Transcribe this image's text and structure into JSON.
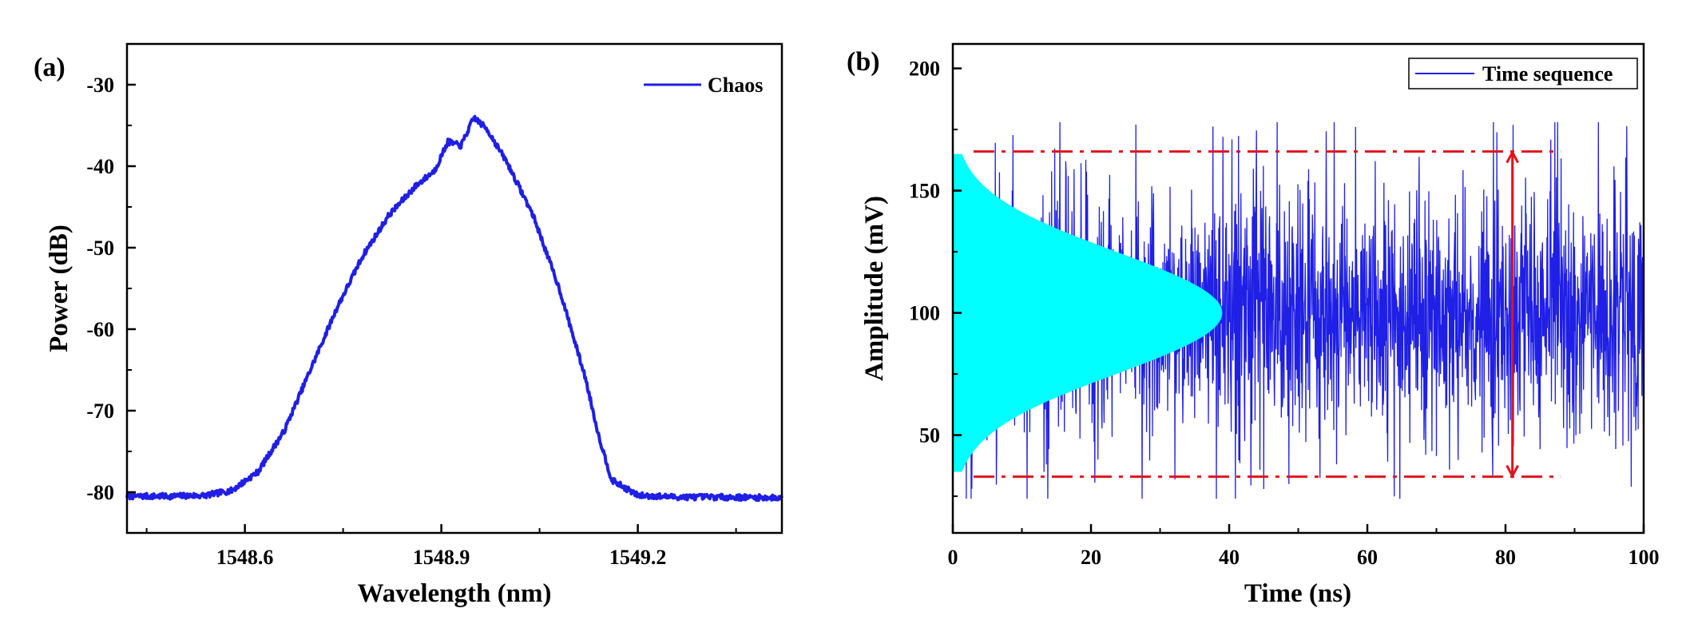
{
  "chart_data": [
    {
      "panel_label": "(a)",
      "type": "line",
      "xlabel": "Wavelength (nm)",
      "ylabel": "Power (dB)",
      "xlim": [
        1548.42,
        1549.42
      ],
      "ylim": [
        -85,
        -25
      ],
      "xticks": [
        1548.6,
        1548.9,
        1549.2
      ],
      "yticks": [
        -80,
        -70,
        -60,
        -50,
        -40,
        -30
      ],
      "legend_position": "top-right",
      "grid": false,
      "series": [
        {
          "name": "Chaos",
          "color": "#1f1fe6",
          "x": [
            1548.42,
            1548.48,
            1548.54,
            1548.58,
            1548.62,
            1548.66,
            1548.7,
            1548.74,
            1548.78,
            1548.82,
            1548.86,
            1548.89,
            1548.91,
            1548.93,
            1548.95,
            1548.97,
            1549.0,
            1549.04,
            1549.08,
            1549.12,
            1549.14,
            1549.16,
            1549.2,
            1549.26,
            1549.32,
            1549.42
          ],
          "y": [
            -80.5,
            -80.5,
            -80.4,
            -79.8,
            -77.5,
            -72.5,
            -65,
            -57.5,
            -51,
            -46,
            -42.5,
            -40.5,
            -37,
            -37.5,
            -34,
            -35.5,
            -39.5,
            -46,
            -55,
            -66,
            -73,
            -78.5,
            -80.4,
            -80.6,
            -80.6,
            -80.7
          ]
        }
      ]
    },
    {
      "panel_label": "(b)",
      "type": "line",
      "xlabel": "Time (ns)",
      "ylabel": "Amplitude (mV)",
      "xlim": [
        0,
        100
      ],
      "ylim": [
        10,
        210
      ],
      "xticks": [
        0,
        20,
        40,
        60,
        80,
        100
      ],
      "yticks": [
        50,
        100,
        150,
        200
      ],
      "legend_position": "top-right",
      "grid": false,
      "series": [
        {
          "name": "Time sequence",
          "color": "#1f1fe6",
          "mean": 100,
          "range": [
            24,
            178
          ]
        }
      ],
      "histogram": {
        "color": "#00ffff",
        "center": 100,
        "peak_x": 39,
        "extent": [
          35,
          165
        ]
      },
      "annotations": {
        "upper_bound": 166,
        "lower_bound": 33,
        "bound_x_range": [
          3,
          88
        ],
        "arrow_x": 81,
        "bound_color": "#e0141e"
      }
    }
  ]
}
